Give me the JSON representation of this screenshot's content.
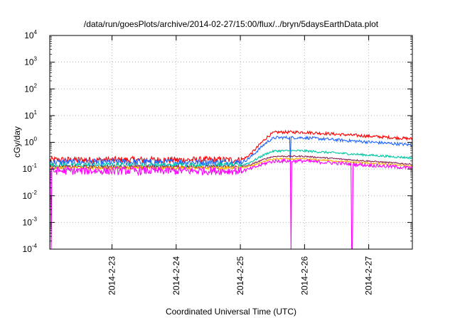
{
  "chart_data": {
    "type": "line",
    "title": "/data/run/goesPlots/archive/2014-02-27/15:00/flux/../bryn/5daysEarthData.plot",
    "xlabel": "Coordinated Universal Time (UTC)",
    "ylabel": "cGy/day",
    "yscale": "log",
    "ylim": [
      0.0001,
      10000
    ],
    "xlim_days": [
      0,
      5.65
    ],
    "x_ticks": [
      {
        "day": 0.97,
        "label": "2014-2-23"
      },
      {
        "day": 1.97,
        "label": "2014-2-24"
      },
      {
        "day": 2.97,
        "label": "2014-2-25"
      },
      {
        "day": 3.97,
        "label": "2014-2-26"
      },
      {
        "day": 4.97,
        "label": "2014-2-27"
      }
    ],
    "y_ticks": [
      {
        "value": 0.0001,
        "base": "10",
        "exp": "-4"
      },
      {
        "value": 0.001,
        "base": "10",
        "exp": "-3"
      },
      {
        "value": 0.01,
        "base": "10",
        "exp": "-2"
      },
      {
        "value": 0.1,
        "base": "10",
        "exp": "-1"
      },
      {
        "value": 1,
        "base": "10",
        "exp": "0"
      },
      {
        "value": 10,
        "base": "10",
        "exp": "1"
      },
      {
        "value": 100,
        "base": "10",
        "exp": "2"
      },
      {
        "value": 1000,
        "base": "10",
        "exp": "3"
      },
      {
        "value": 10000,
        "base": "10",
        "exp": "4"
      }
    ],
    "grid": true,
    "series": [
      {
        "color": "#ff0000",
        "pre": 0.22,
        "peak": 2.4,
        "end": 1.35,
        "noise": 0.25
      },
      {
        "color": "#1e64ff",
        "pre": 0.18,
        "peak": 1.5,
        "end": 0.8,
        "noise": 0.25,
        "dips": [
          {
            "day": 3.75,
            "value": 0.15
          }
        ]
      },
      {
        "color": "#00c8a0",
        "pre": 0.14,
        "peak": 0.48,
        "end": 0.26,
        "noise": 0.18
      },
      {
        "color": "#8b2252",
        "pre": 0.12,
        "peak": 0.3,
        "end": 0.15,
        "noise": 0.12
      },
      {
        "color": "#ffb400",
        "pre": 0.11,
        "peak": 0.24,
        "end": 0.13,
        "noise": 0.12
      },
      {
        "color": "#ff00ff",
        "pre": 0.085,
        "peak": 0.2,
        "end": 0.11,
        "noise": 0.3,
        "dips": [
          {
            "day": 0.02,
            "value": 0.0001
          },
          {
            "day": 3.76,
            "value": 0.0001
          },
          {
            "day": 4.71,
            "value": 0.0001
          }
        ]
      }
    ]
  }
}
